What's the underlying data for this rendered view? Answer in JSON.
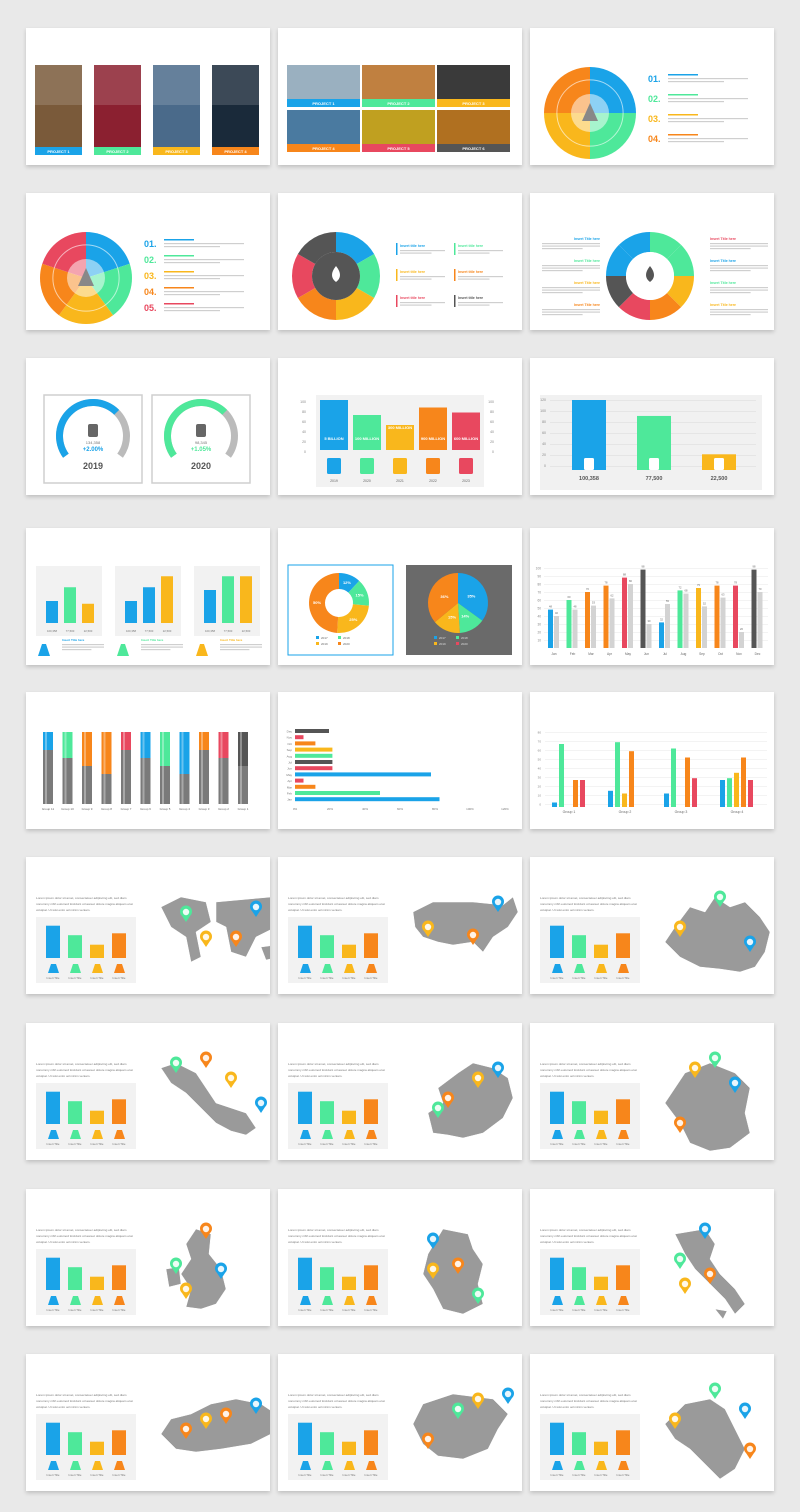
{
  "colors": {
    "blue": "#1aa3e8",
    "green": "#4ee89a",
    "yellow": "#f9b71c",
    "orange": "#f7861b",
    "red": "#e8485f",
    "dark": "#555555",
    "grey": "#bdbdbd"
  },
  "rows": [
    [
      {
        "title": "Our Portfolio Gallery",
        "subtitle": "Type The Subtitle Of Your Great Here",
        "type": "gallery4",
        "labels": [
          "PROJECT 1",
          "PROJECT 2",
          "PROJECT 3",
          "PROJECT 4"
        ]
      },
      {
        "title": "Our Portfolio Gallery",
        "subtitle": "Type The Subtitle Of Your Great Here",
        "type": "gallery6",
        "labels": [
          "PROJECT 1",
          "PROJECT 2",
          "PROJECT 3",
          "PROJECT 4",
          "PROJECT 5",
          "PROJECT 6"
        ]
      },
      {
        "title": "Energy Infographic",
        "subtitle": "Type The Subtitle Of Your Great Here",
        "type": "ring4",
        "numbers": [
          "01.",
          "02.",
          "03.",
          "04."
        ]
      }
    ],
    [
      {
        "title": "Energy Infographic",
        "subtitle": "Type The Subtitle Of Your Great Here",
        "type": "ring5",
        "numbers": [
          "01.",
          "02.",
          "03.",
          "04.",
          "05."
        ]
      },
      {
        "title": "Energy Infographic",
        "subtitle": "Type The Subtitle Of Your Great Here",
        "type": "ring6",
        "labels": [
          "Insert title here",
          "Insert title here",
          "Insert title here",
          "Insert title here",
          "Insert title here",
          "Insert title here"
        ]
      },
      {
        "title": "Energy Infographic",
        "subtitle": "Type The Subtitle Of Your Great Here",
        "type": "ring8",
        "labels": [
          "Insert Title here",
          "Insert Title here",
          "Insert Title here",
          "Insert Title here",
          "Insert Title here",
          "Insert Title here",
          "Insert Title here",
          "Insert Title here"
        ]
      }
    ],
    [
      {
        "title": "Production Growth Charts",
        "subtitle": "Type The Subtitle Of Your Great Here",
        "type": "gauges",
        "gauges": [
          {
            "value": "134,358",
            "pct": "+2.00%",
            "year": "2019"
          },
          {
            "value": "98,345",
            "pct": "+1.05%",
            "year": "2020"
          }
        ]
      },
      {
        "title": "Production Growth Charts",
        "subtitle": "Type The subtitle of your great here",
        "type": "bars5",
        "bars": [
          {
            "value": 100,
            "label": "5 BILLION",
            "year": "2019"
          },
          {
            "value": 70,
            "label": "100 MILLION",
            "year": "2020"
          },
          {
            "value": 50,
            "label": "300 MILLION",
            "year": "2021"
          },
          {
            "value": 85,
            "label": "900 MILLION",
            "year": "2022"
          },
          {
            "value": 75,
            "label": "600 MILLION",
            "year": "2023"
          }
        ]
      },
      {
        "title": "Production Growth Charts",
        "subtitle": "Type The Subtitle Of Your Great Here",
        "type": "bars3",
        "bars": [
          {
            "value": 100358,
            "label": "100,358"
          },
          {
            "value": 77500,
            "label": "77,500"
          },
          {
            "value": 22500,
            "label": "22,500"
          }
        ]
      }
    ],
    [
      {
        "title": "Production Growth Charts",
        "subtitle": "Type The Subtitle Of Your Great Here",
        "type": "tri",
        "panels": [
          {
            "labels": [
              "100,358",
              "77,500",
              "22,500"
            ],
            "values": [
              40,
              65,
              35
            ]
          },
          {
            "labels": [
              "100,358",
              "77,500",
              "22,500"
            ],
            "values": [
              40,
              65,
              85
            ]
          },
          {
            "labels": [
              "100,358",
              "77,500",
              "22,500"
            ],
            "values": [
              60,
              85,
              85
            ]
          }
        ],
        "caption": "Insert Title here"
      },
      {
        "title": "Production Growth Charts",
        "subtitle": "Type The Subtitle Of Your Great Here",
        "type": "pies",
        "donut": {
          "values": [
            12,
            15,
            25,
            50
          ],
          "labels": [
            "12%",
            "15%",
            "25%",
            "50%"
          ]
        },
        "pie": {
          "values": [
            35,
            14,
            15,
            36
          ],
          "labels": [
            "35%",
            "14%",
            "15%",
            "36%"
          ]
        },
        "legend": [
          "2017",
          "2018",
          "2019",
          "2020"
        ]
      },
      {
        "title": "Bar Chart",
        "subtitle": "Enter your sub-head line here",
        "type": "monthly",
        "months": [
          "Jan",
          "Feb",
          "Mar",
          "Apr",
          "May",
          "Jun",
          "Jul",
          "Aug",
          "Sep",
          "Oct",
          "Nov",
          "Dec"
        ],
        "a": [
          48,
          60,
          70,
          78,
          88,
          98,
          32,
          72,
          75,
          78,
          78,
          98
        ],
        "b": [
          40,
          48,
          53,
          62,
          80,
          30,
          55,
          68,
          52,
          63,
          20,
          70
        ]
      }
    ],
    [
      {
        "title": "Bar Chart",
        "subtitle": "Enter your sub-head line here",
        "type": "stacked",
        "groups": [
          "Group 11",
          "Group 10",
          "Group 9",
          "Group 8",
          "Group 7",
          "Group 6",
          "Group 5",
          "Group 4",
          "Group 3",
          "Group 2",
          "Group 1"
        ]
      },
      {
        "title": "Bar Chart",
        "subtitle": "Enter your sub-head line here",
        "type": "hbars",
        "cats": [
          "Dec",
          "Nov",
          "Oct",
          "Sep",
          "Aug",
          "Jul",
          "Jun",
          "May",
          "Apr",
          "Mar",
          "Feb",
          "Jan"
        ],
        "values": [
          20,
          5,
          12,
          22,
          22,
          22,
          22,
          80,
          5,
          12,
          50,
          85
        ],
        "ticks": [
          "0%",
          "20%",
          "40%",
          "60%",
          "80%",
          "100%",
          "120%"
        ]
      },
      {
        "title": "Bar Chart",
        "subtitle": "Enter your sub-head line here",
        "type": "grouped",
        "groups": [
          "Group 1",
          "Group 2",
          "Group 3",
          "Group 4"
        ],
        "series": [
          [
            5,
            18,
            15,
            30
          ],
          [
            70,
            72,
            65,
            32
          ],
          [
            0,
            15,
            0,
            38
          ],
          [
            30,
            62,
            55,
            55
          ],
          [
            30,
            0,
            32,
            30
          ]
        ]
      }
    ],
    [
      {
        "title": "World Map",
        "subtitle": "Type the subtitle of your great here",
        "type": "map",
        "shape": "world",
        "para": "Lorem ipsum dolor sit amet, consectetuer adipiscing elit, sed diam nonummy nibh euismod tincidunt ut laoreet dolore magna aliquam erat volutpat. Ut wisi enim ad minim veniam.",
        "caps": [
          "Insert Title",
          "Insert Title",
          "Insert Title",
          "Insert Title"
        ]
      },
      {
        "title": "USA Map",
        "subtitle": "Type the subtitle of your great here",
        "type": "map",
        "shape": "usa",
        "para": "Lorem ipsum dolor sit amet, consectetuer adipiscing elit, sed diam nonummy nibh euismod tincidunt ut laoreet dolore magna aliquam erat volutpat. Ut wisi enim ad minim veniam.",
        "caps": [
          "Insert Title",
          "Insert Title",
          "Insert Title",
          "Insert Title"
        ]
      },
      {
        "title": "Canada Map",
        "subtitle": "Type the subtitle of your great here",
        "type": "map",
        "shape": "canada",
        "para": "Lorem ipsum dolor sit amet, consectetuer adipiscing elit, sed diam nonummy nibh euismod tincidunt ut laoreet dolore magna aliquam erat volutpat. Ut wisi enim ad minim veniam.",
        "caps": [
          "Insert Title",
          "Insert Title",
          "Insert Title",
          "Insert Title"
        ]
      }
    ],
    [
      {
        "title": "Mexico Map",
        "subtitle": "Type the subtitle of your great here",
        "type": "map",
        "shape": "mexico",
        "para": "Lorem ipsum dolor sit amet, consectetuer adipiscing elit, sed diam nonummy nibh euismod tincidunt ut laoreet dolore magna aliquam erat volutpat. Ut wisi enim ad minim veniam.",
        "caps": [
          "Insert Title",
          "Insert Title",
          "Insert Title",
          "Insert Title"
        ]
      },
      {
        "title": "Europe Map",
        "subtitle": "Type the subtitle of your great here",
        "type": "map",
        "shape": "europe",
        "para": "Lorem ipsum dolor sit amet, consectetuer adipiscing elit, sed diam nonummy nibh euismod tincidunt ut laoreet dolore magna aliquam erat volutpat. Ut wisi enim ad minim veniam.",
        "caps": [
          "Insert Title",
          "Insert Title",
          "Insert Title",
          "Insert Title"
        ]
      },
      {
        "title": "France Map",
        "subtitle": "Type the subtitle of your great here",
        "type": "map",
        "shape": "france",
        "para": "Lorem ipsum dolor sit amet, consectetuer adipiscing elit, sed diam nonummy nibh euismod tincidunt ut laoreet dolore magna aliquam erat volutpat. Ut wisi enim ad minim veniam.",
        "caps": [
          "Insert Title",
          "Insert Title",
          "Insert Title",
          "Insert Title"
        ]
      }
    ],
    [
      {
        "title": "UK & Ireland Map",
        "subtitle": "Type the subtitle of your great here",
        "type": "map",
        "shape": "uk",
        "para": "Lorem ipsum dolor sit amet, consectetuer adipiscing elit, sed diam nonummy nibh euismod tincidunt ut laoreet dolore magna aliquam erat volutpat. Ut wisi enim ad minim veniam.",
        "caps": [
          "Insert Title",
          "Insert Title",
          "Insert Title",
          "Insert Title"
        ]
      },
      {
        "title": "Germany Map",
        "subtitle": "Type the subtitle of your great here",
        "type": "map",
        "shape": "germany",
        "para": "Lorem ipsum dolor sit amet, consectetuer adipiscing elit, sed diam nonummy nibh euismod tincidunt ut laoreet dolore magna aliquam erat volutpat. Ut wisi enim ad minim veniam.",
        "caps": [
          "Insert Title",
          "Insert Title",
          "Insert Title",
          "Insert Title"
        ]
      },
      {
        "title": "Italy Map",
        "subtitle": "Type the subtitle of your great here",
        "type": "map",
        "shape": "italy",
        "para": "Lorem ipsum dolor sit amet, consectetuer adipiscing elit, sed diam nonummy nibh euismod tincidunt ut laoreet dolore magna aliquam erat volutpat. Ut wisi enim ad minim veniam.",
        "caps": [
          "Insert Title",
          "Insert Title",
          "Insert Title",
          "Insert Title"
        ]
      }
    ],
    [
      {
        "title": "Russia Map",
        "subtitle": "Type the subtitle of your great here",
        "type": "map",
        "shape": "russia",
        "para": "Lorem ipsum dolor sit amet, consectetuer adipiscing elit, sed diam nonummy nibh euismod tincidunt ut laoreet dolore magna aliquam erat volutpat. Ut wisi enim ad minim veniam.",
        "caps": [
          "Insert Title",
          "Insert Title",
          "Insert Title",
          "Insert Title"
        ]
      },
      {
        "title": "Spain Map",
        "subtitle": "Type the subtitle of your great here",
        "type": "map",
        "shape": "spain",
        "para": "Lorem ipsum dolor sit amet, consectetuer adipiscing elit, sed diam nonummy nibh euismod tincidunt ut laoreet dolore magna aliquam erat volutpat. Ut wisi enim ad minim veniam.",
        "caps": [
          "Insert Title",
          "Insert Title",
          "Insert Title",
          "Insert Title"
        ]
      },
      {
        "title": "Belgium Map",
        "subtitle": "Type the subtitle of your great here",
        "type": "map",
        "shape": "belgium",
        "para": "Lorem ipsum dolor sit amet, consectetuer adipiscing elit, sed diam nonummy nibh euismod tincidunt ut laoreet dolore magna aliquam erat volutpat. Ut wisi enim ad minim veniam.",
        "caps": [
          "Insert Title",
          "Insert Title",
          "Insert Title",
          "Insert Title"
        ]
      }
    ]
  ]
}
